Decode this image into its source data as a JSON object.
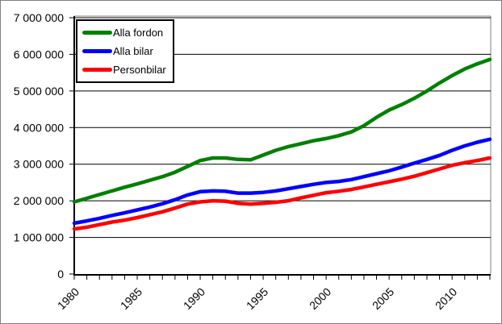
{
  "chart_data": {
    "type": "line",
    "title": "",
    "xlabel": "",
    "ylabel": "",
    "ylim": [
      0,
      7000000
    ],
    "y_tick_interval": 1000000,
    "y_tick_labels": [
      "0",
      "1 000 000",
      "2 000 000",
      "3 000 000",
      "4 000 000",
      "5 000 000",
      "6 000 000",
      "7 000 000"
    ],
    "x_tick_labels": [
      {
        "year": 1980,
        "label": "1980"
      },
      {
        "year": 1985,
        "label": "1985"
      },
      {
        "year": 1990,
        "label": "1990"
      },
      {
        "year": 1995,
        "label": "1995"
      },
      {
        "year": 2000,
        "label": "2000"
      },
      {
        "year": 2005,
        "label": "2005"
      },
      {
        "year": 2010,
        "label": "2010"
      }
    ],
    "grid": "horizontal",
    "legend_position": "top-left-inside",
    "x": [
      1980,
      1981,
      1982,
      1983,
      1984,
      1985,
      1986,
      1987,
      1988,
      1989,
      1990,
      1991,
      1992,
      1993,
      1994,
      1995,
      1996,
      1997,
      1998,
      1999,
      2000,
      2001,
      2002,
      2003,
      2004,
      2005,
      2006,
      2007,
      2008,
      2009,
      2010,
      2011,
      2012,
      2013
    ],
    "series": [
      {
        "name": "Alla fordon",
        "color": "#008000",
        "values": [
          1970000,
          2070000,
          2170000,
          2270000,
          2370000,
          2460000,
          2560000,
          2660000,
          2780000,
          2940000,
          3100000,
          3170000,
          3170000,
          3130000,
          3120000,
          3250000,
          3380000,
          3480000,
          3560000,
          3640000,
          3700000,
          3780000,
          3880000,
          4050000,
          4280000,
          4480000,
          4630000,
          4800000,
          5000000,
          5220000,
          5420000,
          5600000,
          5740000,
          5860000
        ]
      },
      {
        "name": "Alla bilar",
        "color": "#0000ff",
        "values": [
          1390000,
          1450000,
          1520000,
          1600000,
          1670000,
          1750000,
          1830000,
          1920000,
          2030000,
          2160000,
          2250000,
          2270000,
          2260000,
          2210000,
          2210000,
          2230000,
          2270000,
          2330000,
          2390000,
          2450000,
          2500000,
          2530000,
          2580000,
          2660000,
          2740000,
          2820000,
          2920000,
          3030000,
          3130000,
          3240000,
          3380000,
          3500000,
          3600000,
          3680000
        ]
      },
      {
        "name": "Personbilar",
        "color": "#ff0000",
        "values": [
          1230000,
          1280000,
          1350000,
          1420000,
          1470000,
          1540000,
          1620000,
          1700000,
          1800000,
          1910000,
          1970000,
          2000000,
          1990000,
          1930000,
          1910000,
          1930000,
          1960000,
          2000000,
          2080000,
          2150000,
          2220000,
          2260000,
          2310000,
          2380000,
          2450000,
          2520000,
          2590000,
          2670000,
          2770000,
          2870000,
          2970000,
          3040000,
          3100000,
          3170000
        ]
      }
    ],
    "colors": {
      "axis": "#000000",
      "grid": "#000000",
      "plot_frame": "#808080",
      "background": "#ffffff"
    }
  }
}
